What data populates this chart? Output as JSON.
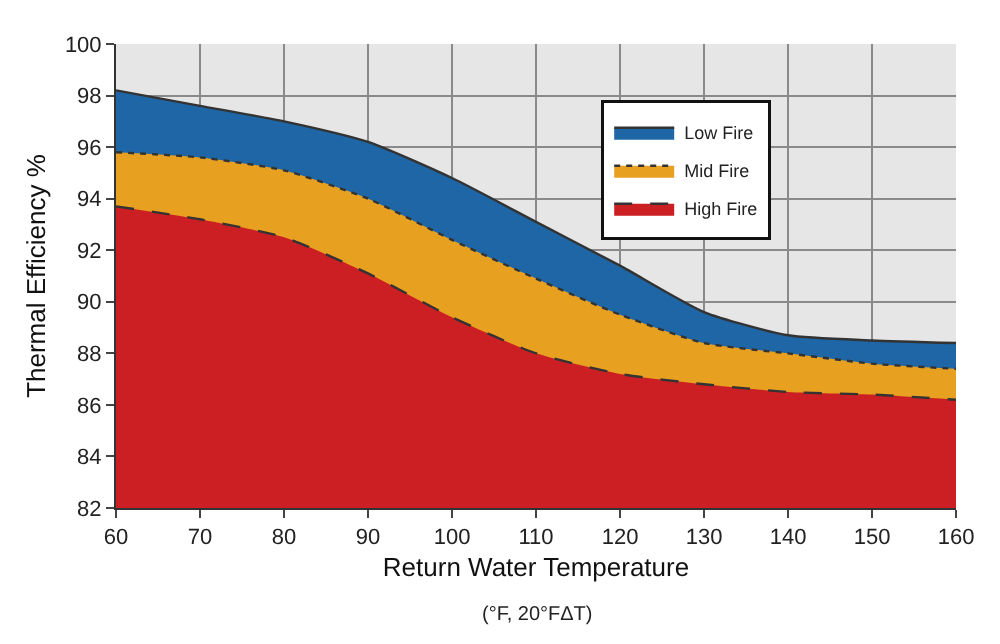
{
  "chart_data": {
    "type": "area",
    "xlabel": "Return Water Temperature",
    "ylabel": "Thermal Efficiency %",
    "annotations": [
      "(°F, 20°FΔT)"
    ],
    "x": [
      60,
      70,
      80,
      90,
      100,
      110,
      120,
      130,
      140,
      150,
      160
    ],
    "series": [
      {
        "name": "Low Fire",
        "color": "#1e66a6",
        "line_style": "solid",
        "values": [
          98.2,
          97.6,
          97.0,
          96.2,
          94.8,
          93.1,
          91.4,
          89.6,
          88.7,
          88.5,
          88.4
        ]
      },
      {
        "name": "Mid Fire",
        "color": "#e8a020",
        "line_style": "dotted",
        "values": [
          95.8,
          95.6,
          95.1,
          94.0,
          92.4,
          90.9,
          89.5,
          88.4,
          88.0,
          87.6,
          87.4
        ]
      },
      {
        "name": "High Fire",
        "color": "#cc1f24",
        "line_style": "dashed",
        "values": [
          93.7,
          93.2,
          92.5,
          91.1,
          89.4,
          88.0,
          87.2,
          86.8,
          86.5,
          86.4,
          86.2
        ]
      }
    ],
    "xlim": [
      60,
      160
    ],
    "xticks": [
      60,
      70,
      80,
      90,
      100,
      110,
      120,
      130,
      140,
      150,
      160
    ],
    "ylim": [
      82,
      100
    ],
    "yticks": [
      82,
      84,
      86,
      88,
      90,
      92,
      94,
      96,
      98,
      100
    ],
    "grid": true,
    "legend": "top right",
    "marker": "none"
  }
}
